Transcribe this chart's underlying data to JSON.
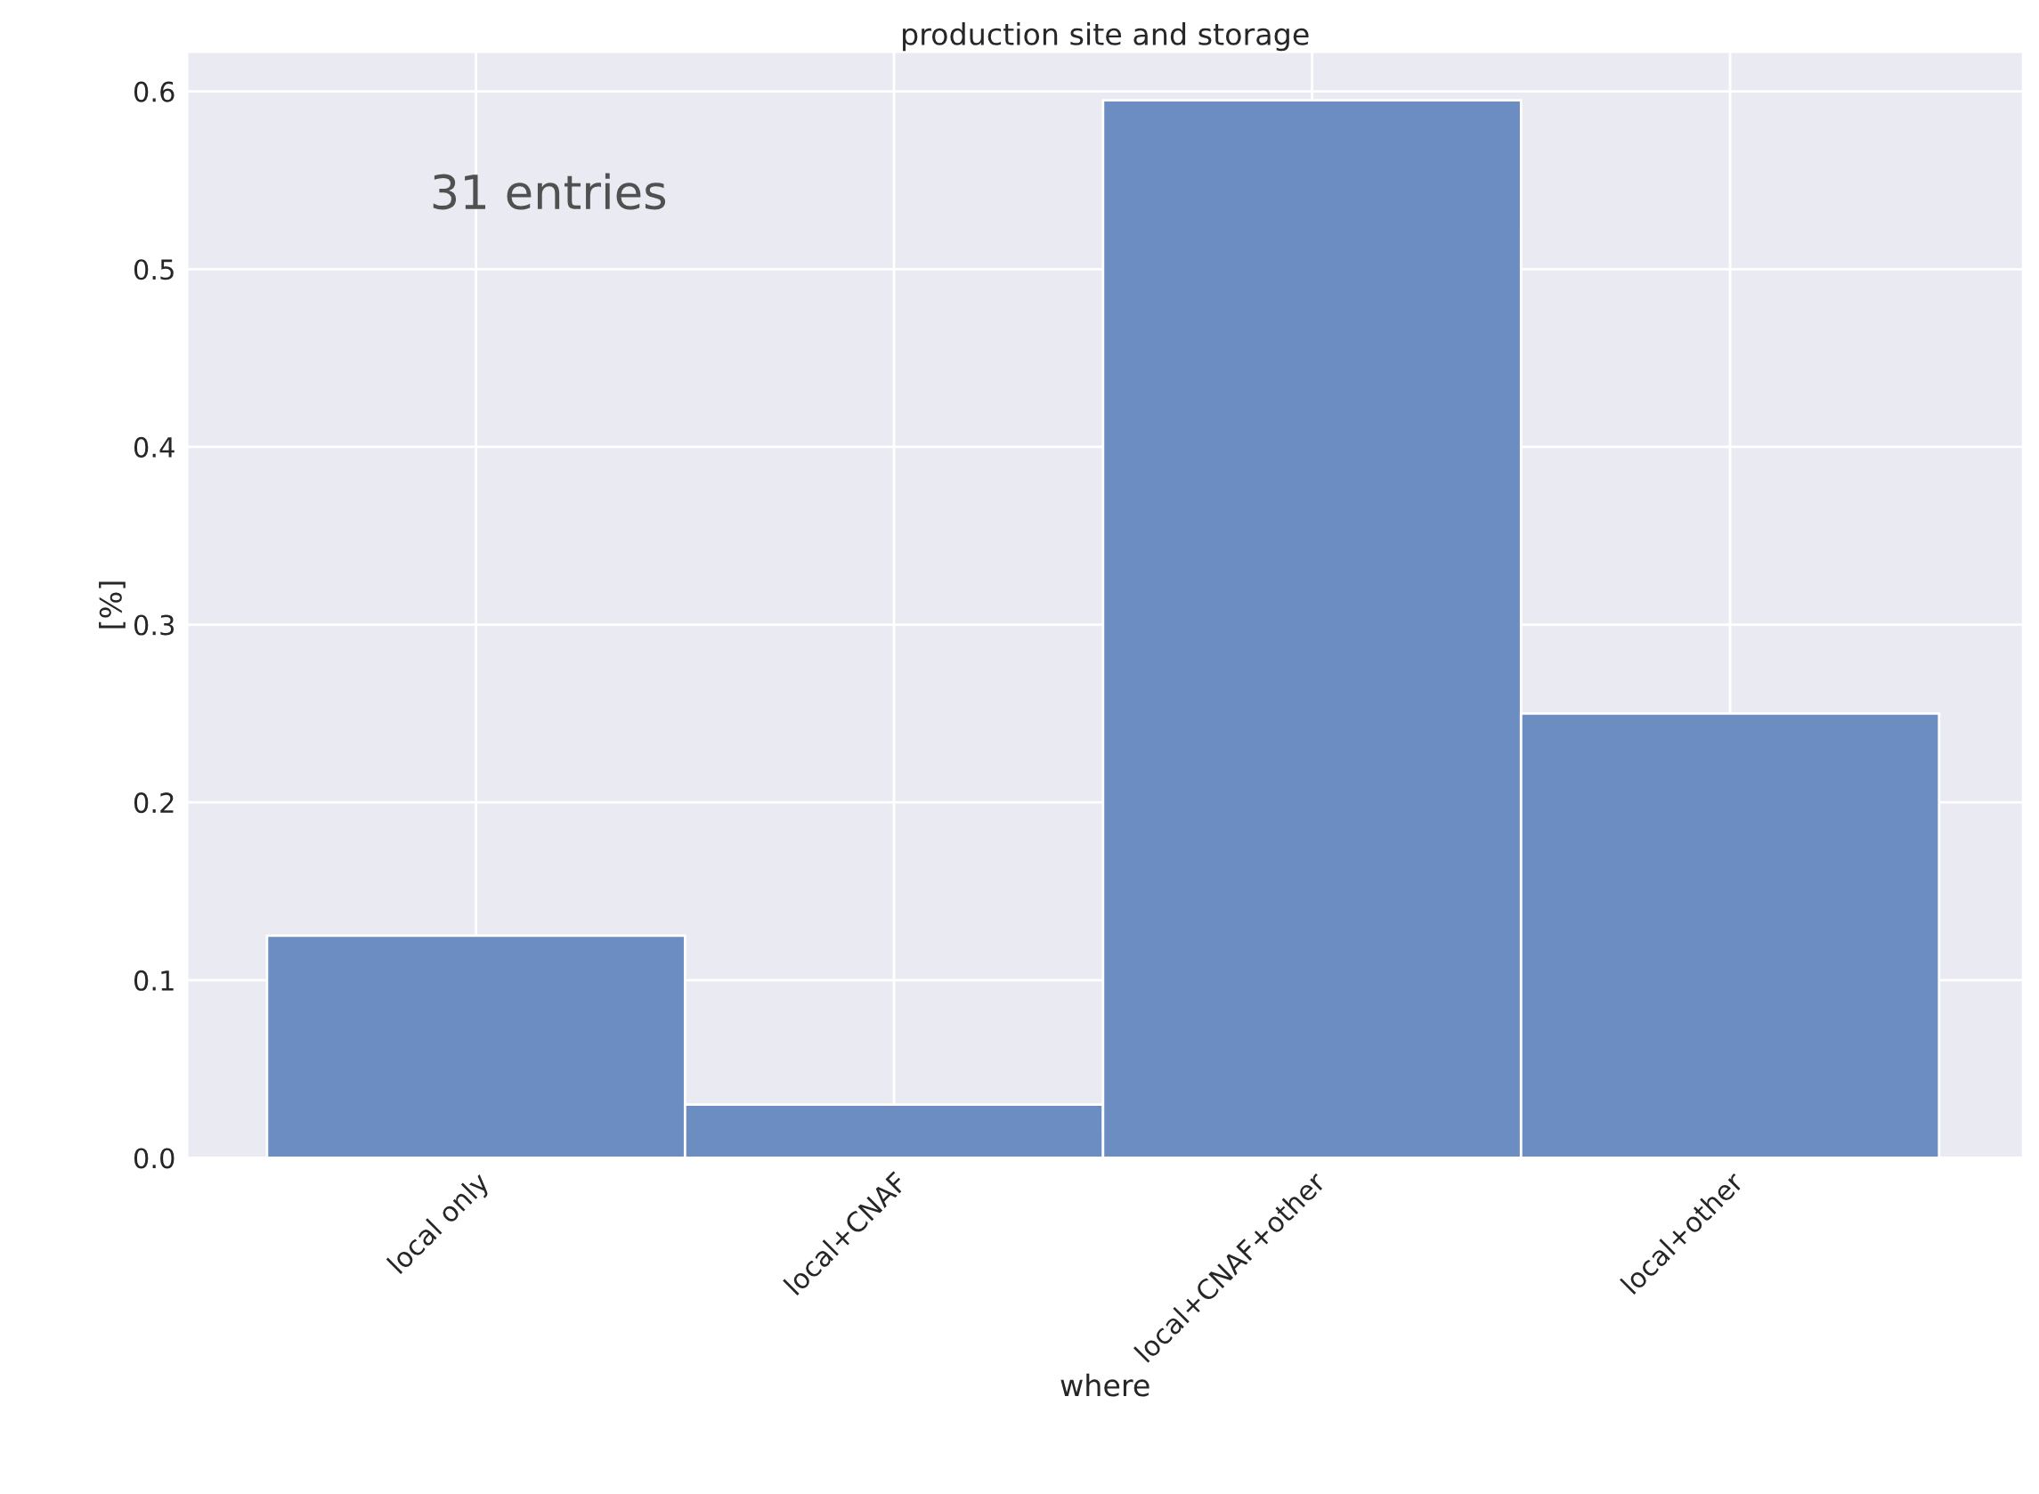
{
  "chart_data": {
    "type": "bar",
    "title": "production site and storage",
    "xlabel": "where",
    "ylabel": "[%]",
    "categories": [
      "local only",
      "local+CNAF",
      "local+CNAF+other",
      "local+other"
    ],
    "values": [
      0.125,
      0.03,
      0.595,
      0.25
    ],
    "color": "#6b8dc2",
    "ylim": [
      0,
      0.622
    ],
    "yticks": [
      {
        "value": 0,
        "label": "0.0"
      },
      0.1,
      0.2,
      0.3,
      0.4,
      0.5,
      0.6
    ],
    "annotations": [
      "31 entries"
    ],
    "grid": true
  }
}
